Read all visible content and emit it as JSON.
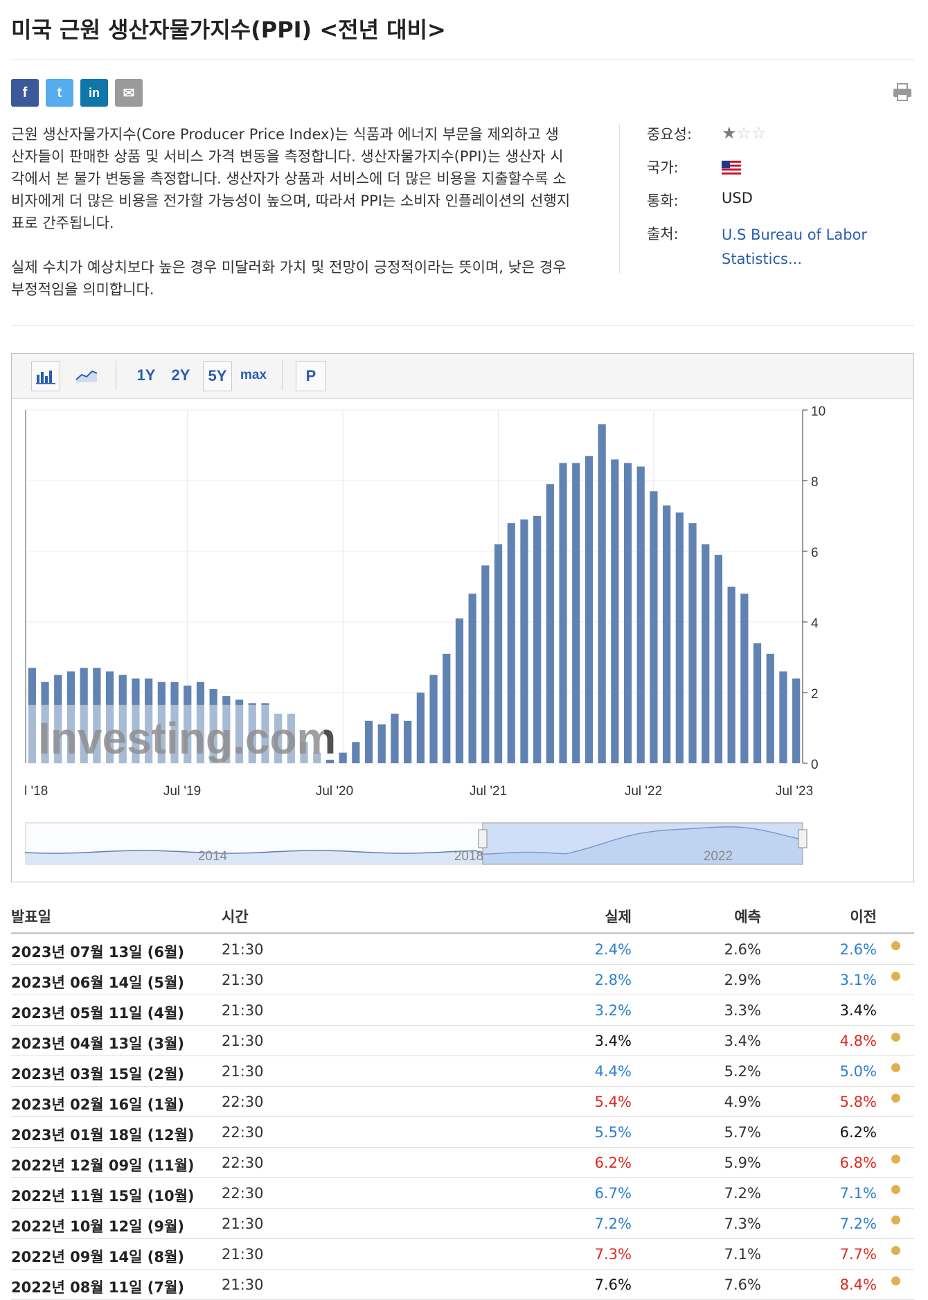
{
  "page": {
    "title": "미국 근원 생산자물가지수(PPI) <전년 대비>",
    "description": [
      "근원 생산자물가지수(Core Producer Price Index)는 식품과 에너지 부문을 제외하고 생산자들이 판매한 상품 및 서비스 가격 변동을 측정합니다. 생산자물가지수(PPI)는 생산자 시각에서 본 물가 변동을 측정합니다. 생산자가 상품과 서비스에 더 많은 비용을 지출할수록 소비자에게 더 많은 비용을 전가할 가능성이 높으며, 따라서 PPI는 소비자 인플레이션의 선행지표로 간주됩니다.",
      "실제 수치가 예상치보다 높은 경우 미달러화 가치 및 전망이 긍정적이라는 뜻이며, 낮은 경우 부정적임을 의미합니다."
    ]
  },
  "share": {
    "facebook": "f",
    "twitter": "t",
    "linkedin": "in",
    "email": "✉",
    "colors": {
      "facebook": "#3b5998",
      "twitter": "#55acee",
      "linkedin": "#0e76a8",
      "email": "#9a9a9a"
    }
  },
  "meta": {
    "importance_label": "중요성:",
    "importance_stars": 1,
    "importance_max": 3,
    "country_label": "국가:",
    "country_icon": "us-flag-icon",
    "currency_label": "통화:",
    "currency": "USD",
    "source_label": "출처:",
    "source": "U.S Bureau of Labor Statistics..."
  },
  "toolbar": {
    "ranges": [
      "1Y",
      "2Y",
      "5Y",
      "max"
    ],
    "active_range": "5Y",
    "p_label": "P",
    "icons": [
      "bar-chart-icon",
      "line-chart-icon"
    ]
  },
  "chart_data": {
    "type": "bar",
    "watermark": "Investing.com",
    "x_tick_labels": [
      "l '18",
      "Jul '19",
      "Jul '20",
      "Jul '21",
      "Jul '22",
      "Jul '23"
    ],
    "y_ticks": [
      0,
      2,
      4,
      6,
      8,
      10
    ],
    "ylim": [
      0,
      10
    ],
    "grid": true,
    "values": [
      2.7,
      2.3,
      2.5,
      2.6,
      2.7,
      2.7,
      2.6,
      2.5,
      2.4,
      2.4,
      2.3,
      2.3,
      2.2,
      2.3,
      2.1,
      1.9,
      1.8,
      1.7,
      1.7,
      1.4,
      1.4,
      0.6,
      0.3,
      0.1,
      0.3,
      0.6,
      1.2,
      1.1,
      1.4,
      1.2,
      2.0,
      2.5,
      3.1,
      4.1,
      4.8,
      5.6,
      6.2,
      6.8,
      6.9,
      7.0,
      7.9,
      8.5,
      8.5,
      8.7,
      9.6,
      8.6,
      8.5,
      8.4,
      7.7,
      7.3,
      7.1,
      6.8,
      6.2,
      5.9,
      5.0,
      4.8,
      3.4,
      3.1,
      2.6,
      2.4
    ],
    "navigator": {
      "labels": [
        "2014",
        "2018",
        "2022"
      ]
    }
  },
  "table": {
    "headers": {
      "date": "발표일",
      "time": "시간",
      "actual": "실제",
      "forecast": "예측",
      "previous": "이전"
    },
    "colors": {
      "blue": "#2a7fd4",
      "red": "#e0281e",
      "black": "#111111"
    },
    "rows": [
      {
        "date": "2023년 07월 13일 (6월)",
        "time": "21:30",
        "actual": "2.4%",
        "actual_color": "blue",
        "forecast": "2.6%",
        "previous": "2.6%",
        "previous_color": "blue",
        "revised": true
      },
      {
        "date": "2023년 06월 14일 (5월)",
        "time": "21:30",
        "actual": "2.8%",
        "actual_color": "blue",
        "forecast": "2.9%",
        "previous": "3.1%",
        "previous_color": "blue",
        "revised": true
      },
      {
        "date": "2023년 05월 11일 (4월)",
        "time": "21:30",
        "actual": "3.2%",
        "actual_color": "blue",
        "forecast": "3.3%",
        "previous": "3.4%",
        "previous_color": "black",
        "revised": false
      },
      {
        "date": "2023년 04월 13일 (3월)",
        "time": "21:30",
        "actual": "3.4%",
        "actual_color": "black",
        "forecast": "3.4%",
        "previous": "4.8%",
        "previous_color": "red",
        "revised": true
      },
      {
        "date": "2023년 03월 15일 (2월)",
        "time": "21:30",
        "actual": "4.4%",
        "actual_color": "blue",
        "forecast": "5.2%",
        "previous": "5.0%",
        "previous_color": "blue",
        "revised": true
      },
      {
        "date": "2023년 02월 16일 (1월)",
        "time": "22:30",
        "actual": "5.4%",
        "actual_color": "red",
        "forecast": "4.9%",
        "previous": "5.8%",
        "previous_color": "red",
        "revised": true
      },
      {
        "date": "2023년 01월 18일 (12월)",
        "time": "22:30",
        "actual": "5.5%",
        "actual_color": "blue",
        "forecast": "5.7%",
        "previous": "6.2%",
        "previous_color": "black",
        "revised": false
      },
      {
        "date": "2022년 12월 09일 (11월)",
        "time": "22:30",
        "actual": "6.2%",
        "actual_color": "red",
        "forecast": "5.9%",
        "previous": "6.8%",
        "previous_color": "red",
        "revised": true
      },
      {
        "date": "2022년 11월 15일 (10월)",
        "time": "22:30",
        "actual": "6.7%",
        "actual_color": "blue",
        "forecast": "7.2%",
        "previous": "7.1%",
        "previous_color": "blue",
        "revised": true
      },
      {
        "date": "2022년 10월 12일 (9월)",
        "time": "21:30",
        "actual": "7.2%",
        "actual_color": "blue",
        "forecast": "7.3%",
        "previous": "7.2%",
        "previous_color": "blue",
        "revised": true
      },
      {
        "date": "2022년 09월 14일 (8월)",
        "time": "21:30",
        "actual": "7.3%",
        "actual_color": "red",
        "forecast": "7.1%",
        "previous": "7.7%",
        "previous_color": "red",
        "revised": true
      },
      {
        "date": "2022년 08월 11일 (7월)",
        "time": "21:30",
        "actual": "7.6%",
        "actual_color": "black",
        "forecast": "7.6%",
        "previous": "8.4%",
        "previous_color": "red",
        "revised": true
      }
    ]
  }
}
